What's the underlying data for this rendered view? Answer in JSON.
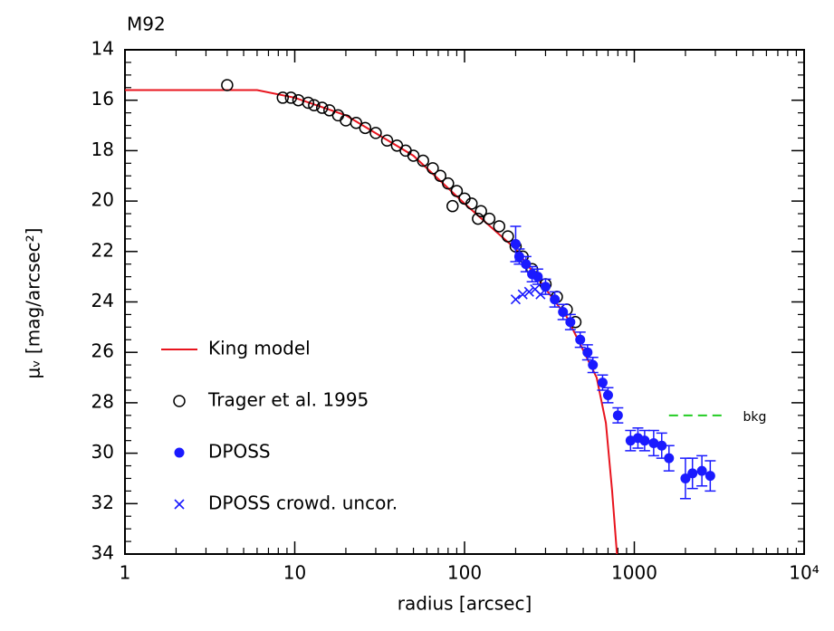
{
  "chart_data": {
    "type": "scatter",
    "title": "M92",
    "xlabel": "radius [arcsec]",
    "ylabel": "μᵥ [mag/arcsec²]",
    "xlog": true,
    "y_inverted": true,
    "xlim": [
      1,
      10000
    ],
    "ylim": [
      14,
      34
    ],
    "xticks": [
      1,
      10,
      100,
      1000,
      {
        "value": 10000,
        "label": "10⁴"
      }
    ],
    "yticks": [
      14,
      16,
      18,
      20,
      22,
      24,
      26,
      28,
      30,
      32,
      34
    ],
    "legend": "lower left",
    "series": [
      {
        "name": "King model",
        "color": "#e8141e",
        "marker": "line",
        "x": [
          1,
          3,
          6,
          10,
          20,
          50,
          100,
          200,
          400,
          600,
          680,
          740,
          790
        ],
        "values": [
          15.6,
          15.6,
          15.6,
          15.9,
          16.6,
          18.2,
          20.1,
          21.9,
          24.6,
          27.0,
          28.8,
          31.5,
          34.0
        ]
      },
      {
        "name": "Trager et al. 1995",
        "color": "#000000",
        "marker": "open-circle",
        "x": [
          4,
          8.5,
          9.5,
          10.5,
          12,
          13,
          14.5,
          16,
          18,
          20,
          23,
          26,
          30,
          35,
          40,
          45,
          50,
          57,
          65,
          72,
          80,
          85,
          90,
          100,
          110,
          120,
          125,
          140,
          160,
          180,
          200,
          220,
          250,
          300,
          350,
          400,
          450
        ],
        "values": [
          15.4,
          15.9,
          15.9,
          16.0,
          16.1,
          16.2,
          16.3,
          16.4,
          16.6,
          16.8,
          16.9,
          17.1,
          17.3,
          17.6,
          17.8,
          18.0,
          18.2,
          18.4,
          18.7,
          19.0,
          19.3,
          20.2,
          19.6,
          19.9,
          20.1,
          20.7,
          20.4,
          20.7,
          21.0,
          21.4,
          21.8,
          22.2,
          22.7,
          23.3,
          23.8,
          24.3,
          24.8
        ]
      },
      {
        "name": "DPOSS",
        "color": "#1a1aff",
        "marker": "filled-circle",
        "x": [
          200,
          210,
          230,
          250,
          270,
          300,
          340,
          380,
          420,
          480,
          530,
          570,
          650,
          700,
          800,
          950,
          1050,
          1150,
          1300,
          1450,
          1600,
          2000,
          2200,
          2500,
          2800
        ],
        "values": [
          21.7,
          22.2,
          22.5,
          22.9,
          23.0,
          23.4,
          23.9,
          24.4,
          24.8,
          25.5,
          26.0,
          26.5,
          27.2,
          27.7,
          28.5,
          29.5,
          29.4,
          29.5,
          29.6,
          29.7,
          30.2,
          31.0,
          30.8,
          30.7,
          30.9
        ],
        "errors": [
          0.7,
          0.3,
          0.3,
          0.3,
          0.3,
          0.3,
          0.3,
          0.3,
          0.3,
          0.3,
          0.3,
          0.3,
          0.3,
          0.3,
          0.3,
          0.4,
          0.4,
          0.4,
          0.5,
          0.5,
          0.5,
          0.8,
          0.6,
          0.6,
          0.6
        ]
      },
      {
        "name": "DPOSS crowd. uncor.",
        "color": "#1a1aff",
        "marker": "x",
        "x": [
          200,
          220,
          240,
          260,
          280
        ],
        "values": [
          23.9,
          23.7,
          23.6,
          23.5,
          23.7
        ]
      }
    ],
    "background": {
      "name": "bkg",
      "color": "#22cc22",
      "value": 28.5,
      "x": [
        1600,
        3500
      ]
    }
  }
}
